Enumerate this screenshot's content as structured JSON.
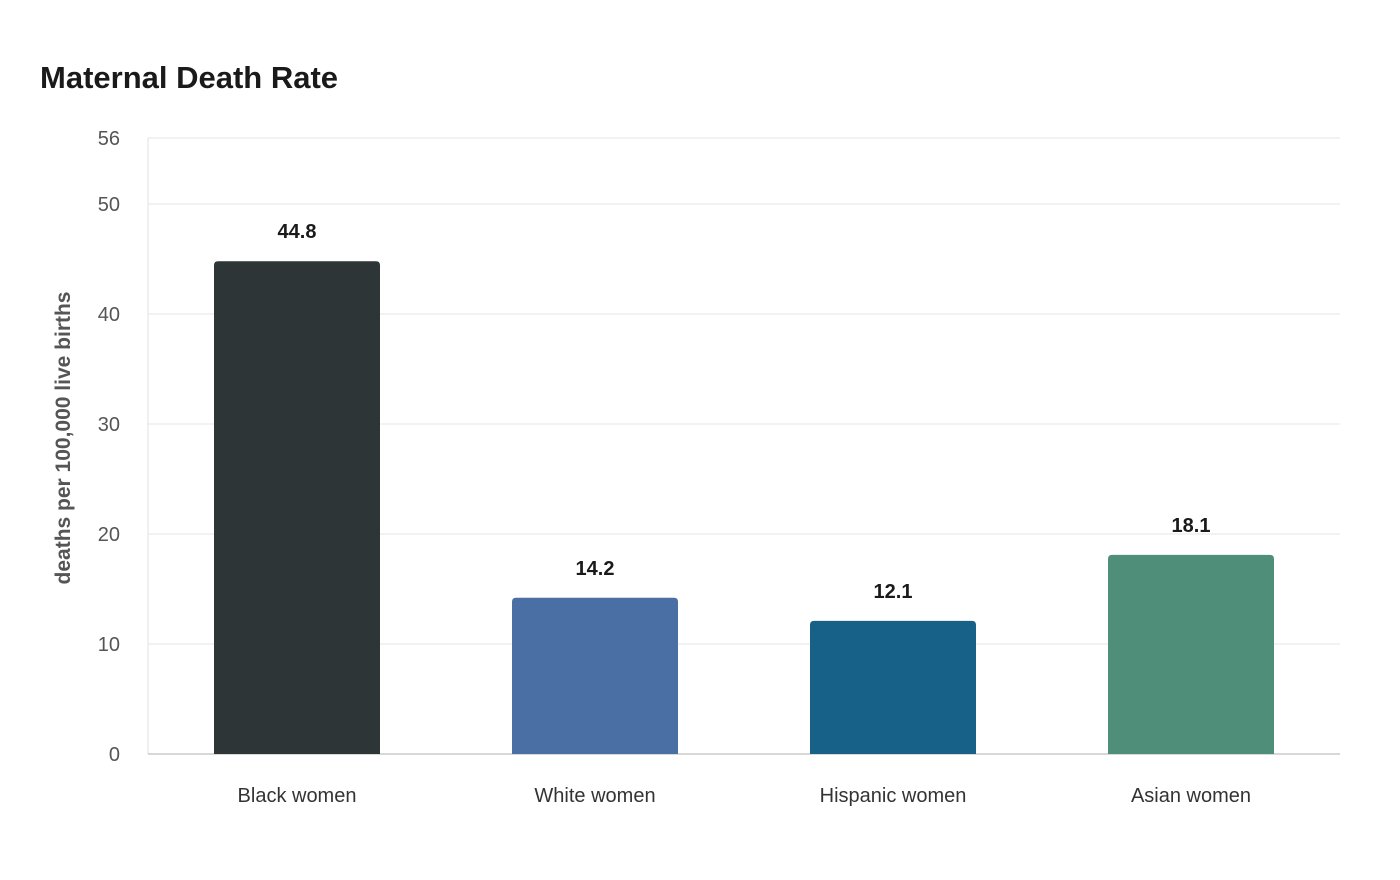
{
  "chart_data": {
    "type": "bar",
    "title": "Maternal Death Rate",
    "ylabel": "deaths per 100,000 live births",
    "xlabel": "",
    "categories": [
      "Black women",
      "White women",
      "Hispanic women",
      "Asian women"
    ],
    "values": [
      44.8,
      14.2,
      12.1,
      18.1
    ],
    "data_labels": [
      "44.8",
      "14.2",
      "12.1",
      "18.1"
    ],
    "colors": [
      "#2d3537",
      "#4a6fa5",
      "#176087",
      "#4f8f7a"
    ],
    "ylim": [
      0,
      56
    ],
    "yticks": [
      0,
      10,
      20,
      30,
      40,
      50,
      56
    ],
    "ytick_labels": [
      "0",
      "10",
      "20",
      "30",
      "40",
      "50",
      "56"
    ],
    "grid": true,
    "legend": "none"
  }
}
